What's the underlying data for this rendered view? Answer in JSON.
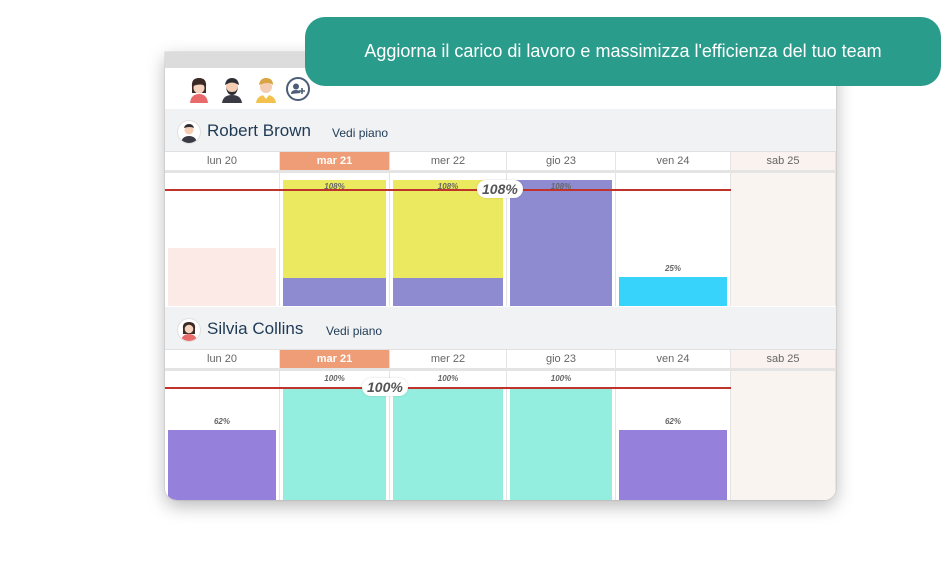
{
  "banner": {
    "text": "Aggiorna il carico di lavoro e massimizza l'efficienza del tuo team"
  },
  "toolbar": {
    "avatars": [
      "female-avatar-icon",
      "bearded-man-avatar-icon",
      "man-avatar-icon"
    ],
    "add_user_icon": "add-user-icon"
  },
  "days": [
    "lun 20",
    "mar 21",
    "mer 22",
    "gio 23",
    "ven 24",
    "sab 25"
  ],
  "today_index": 1,
  "colors": {
    "accent": "#2a9c8b",
    "today": "#ef9d76",
    "capacity_line": "#c0332b",
    "yellow": "#ebe960",
    "purple": "#8f8bd1",
    "cyan": "#38d3fb",
    "mint": "#94eedf",
    "violet": "#9581dc",
    "leave": "#fbeae6"
  },
  "people": [
    {
      "name": "Robert Brown",
      "view_plan": "Vedi piano",
      "total_label": "108%",
      "loads": [
        {
          "pct": "",
          "level": 0.5,
          "segments": [
            {
              "color": "#fbeae6",
              "share": 1
            }
          ]
        },
        {
          "pct": "108%",
          "level": 1.08,
          "segments": [
            {
              "color": "#8f8bd1",
              "share": 0.22
            },
            {
              "color": "#ebe960",
              "share": 0.78
            }
          ]
        },
        {
          "pct": "108%",
          "level": 1.08,
          "segments": [
            {
              "color": "#8f8bd1",
              "share": 0.22
            },
            {
              "color": "#ebe960",
              "share": 0.78
            }
          ]
        },
        {
          "pct": "108%",
          "level": 1.08,
          "segments": [
            {
              "color": "#8f8bd1",
              "share": 1
            }
          ]
        },
        {
          "pct": "25%",
          "level": 0.25,
          "segments": [
            {
              "color": "#38d3fb",
              "share": 1
            }
          ]
        }
      ]
    },
    {
      "name": "Silvia Collins",
      "view_plan": "Vedi piano",
      "total_label": "100%",
      "loads": [
        {
          "pct": "62%",
          "level": 0.62,
          "segments": [
            {
              "color": "#9581dc",
              "share": 1
            }
          ]
        },
        {
          "pct": "100%",
          "level": 1.0,
          "segments": [
            {
              "color": "#94eedf",
              "share": 1
            }
          ]
        },
        {
          "pct": "100%",
          "level": 1.0,
          "segments": [
            {
              "color": "#94eedf",
              "share": 1
            }
          ]
        },
        {
          "pct": "100%",
          "level": 1.0,
          "segments": [
            {
              "color": "#94eedf",
              "share": 1
            }
          ]
        },
        {
          "pct": "62%",
          "level": 0.62,
          "segments": [
            {
              "color": "#9581dc",
              "share": 1
            }
          ]
        }
      ]
    }
  ]
}
